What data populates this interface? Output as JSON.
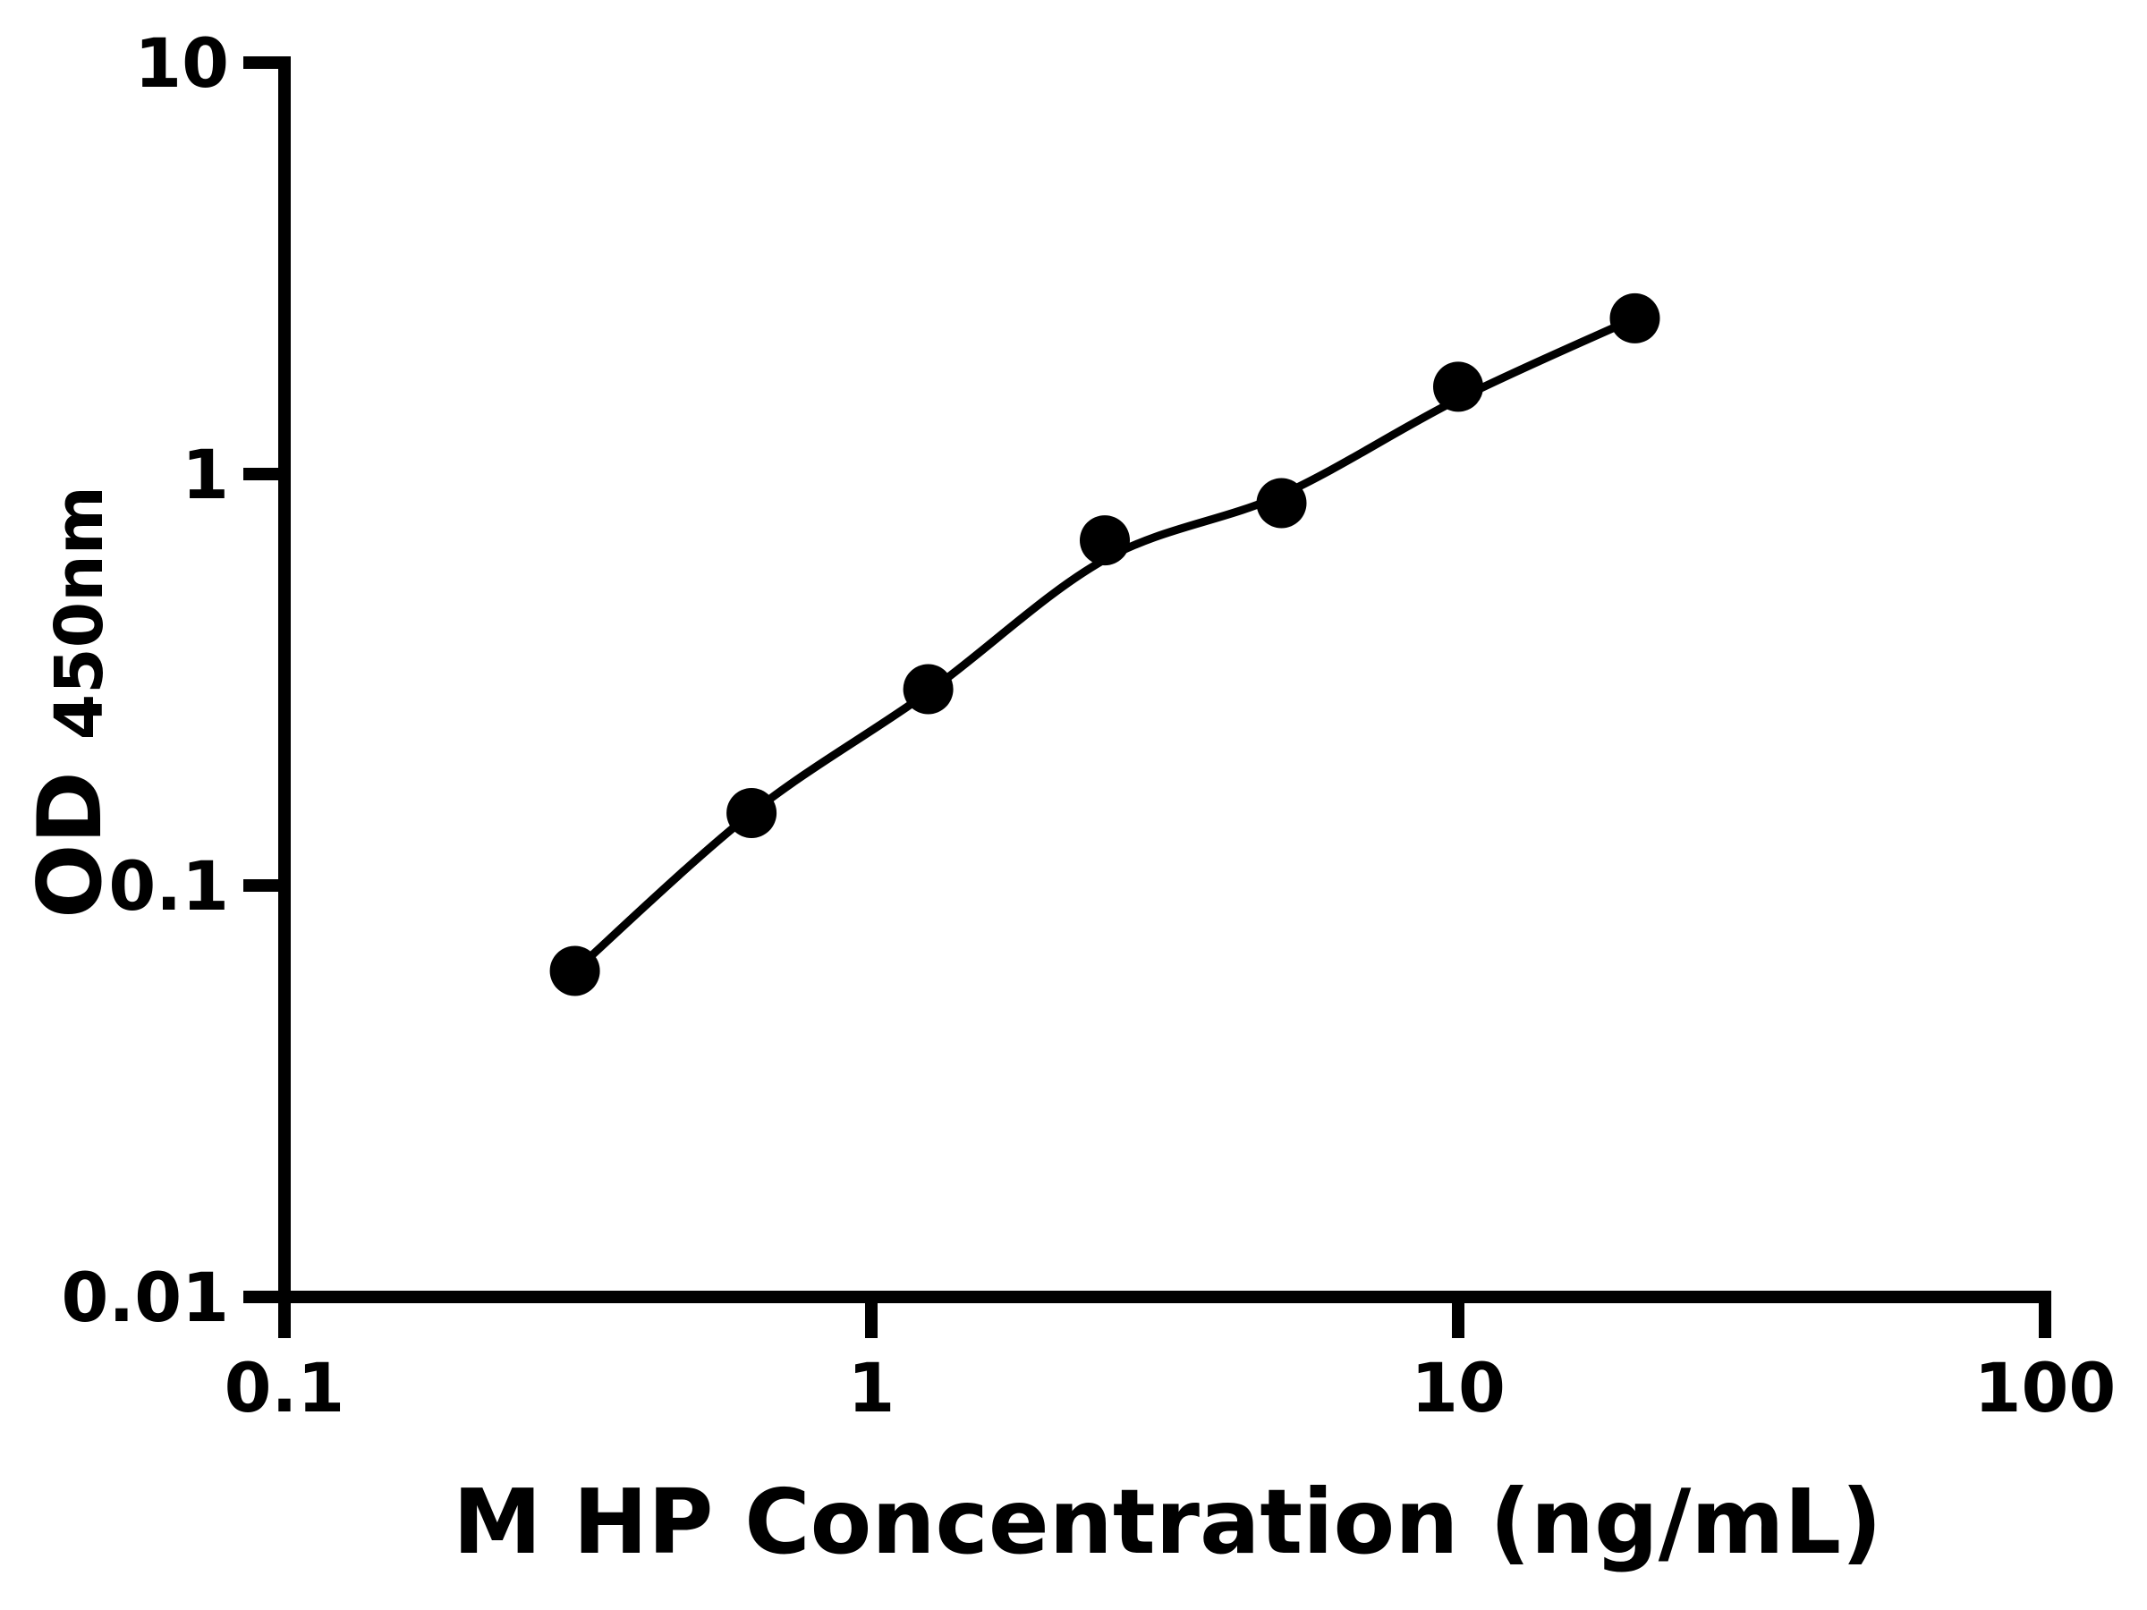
{
  "figure": {
    "background": "#ffffff"
  },
  "chart_data": {
    "type": "scatter",
    "title": "",
    "xlabel": "M HP Concentration (ng/mL)",
    "ylabel_main": "OD",
    "ylabel_subscript": "450nm",
    "x_scale": "log",
    "y_scale": "log",
    "xlim": [
      0.1,
      100
    ],
    "ylim": [
      0.01,
      10
    ],
    "grid": false,
    "legend": "none",
    "axis_color": "#000000",
    "background": "#ffffff",
    "x_ticks": [
      {
        "value": 0.1,
        "label": "0.1"
      },
      {
        "value": 1,
        "label": "1"
      },
      {
        "value": 10,
        "label": "10"
      },
      {
        "value": 100,
        "label": "100"
      }
    ],
    "y_ticks": [
      {
        "value": 10,
        "label": "10"
      },
      {
        "value": 1,
        "label": "1"
      },
      {
        "value": 0.1,
        "label": "0.1"
      },
      {
        "value": 0.01,
        "label": "0.01"
      }
    ],
    "series": [
      {
        "name": "standard-points",
        "type": "scatter",
        "marker": "filled-circle",
        "color": "#000000",
        "x": [
          0.3125,
          0.625,
          1.25,
          2.5,
          5,
          10,
          20
        ],
        "y": [
          0.062,
          0.15,
          0.3,
          0.69,
          0.85,
          1.63,
          2.39
        ]
      },
      {
        "name": "fit-curve",
        "type": "line",
        "color": "#000000",
        "x": [
          0.3125,
          0.625,
          1.25,
          2.5,
          5,
          10,
          20
        ],
        "y": [
          0.062,
          0.15,
          0.295,
          0.62,
          0.89,
          1.52,
          2.39
        ]
      }
    ]
  }
}
